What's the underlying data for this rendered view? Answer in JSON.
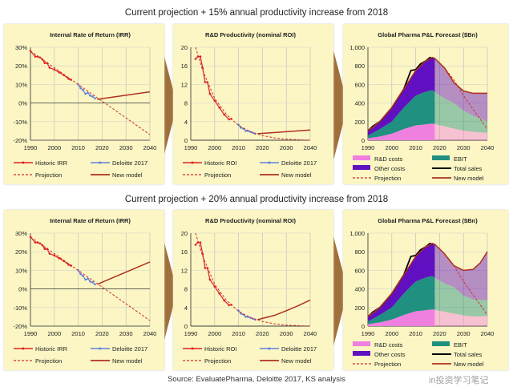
{
  "titles": [
    "Current projection + 15% annual productivity increase from 2018",
    "Current projection + 20% annual productivity increase from 2018"
  ],
  "source": "Source: EvaluatePharma, Deloitte 2017, KS analysis",
  "watermark": "in投资学习笔记",
  "colors": {
    "panel_bg": "#fbf6c4",
    "arrow": "#a0703a",
    "historic": "#e02020",
    "deloitte": "#6080e0",
    "projection": "#d03030",
    "new_model": "#b03020",
    "rd": "#f080e0",
    "ebit": "#209080",
    "other": "#6010c0",
    "total": "#000000"
  },
  "chart_data": [
    {
      "type": "line",
      "row": 0,
      "title": "Internal Rate of Return (IRR)",
      "xlim": [
        1990,
        2040
      ],
      "ylim": [
        -20,
        30
      ],
      "xticks": [
        1990,
        2000,
        2010,
        2020,
        2030,
        2040
      ],
      "yticks": [
        -20,
        -10,
        0,
        10,
        20,
        30
      ],
      "ytick_labels": [
        "-20%",
        "-10%",
        "0%",
        "10%",
        "20%",
        "30%"
      ],
      "grid": true,
      "series": [
        {
          "name": "Historic IRR",
          "style": "historic",
          "x": [
            1990,
            1992,
            1993,
            1994,
            1995,
            1996,
            1997,
            1998,
            2000,
            2002,
            2004,
            2006,
            2007
          ],
          "y": [
            28,
            25,
            25,
            24.5,
            23.5,
            21.5,
            21.5,
            19,
            18,
            16.5,
            15,
            13,
            12.5
          ]
        },
        {
          "name": "Deloitte 2017",
          "style": "deloitte",
          "x": [
            2010,
            2011,
            2012,
            2013,
            2014,
            2015,
            2016,
            2017
          ],
          "y": [
            10,
            8,
            7,
            5,
            5.5,
            4,
            3.5,
            2.5
          ]
        },
        {
          "name": "Projection",
          "style": "projection",
          "x": [
            1990,
            2040
          ],
          "y": [
            28,
            -17
          ]
        },
        {
          "name": "New model",
          "style": "new_model",
          "x": [
            2018,
            2040
          ],
          "y": [
            2,
            6
          ]
        }
      ]
    },
    {
      "type": "line",
      "row": 0,
      "title": "R&D Productivity (nominal ROI)",
      "xlim": [
        1990,
        2040
      ],
      "ylim": [
        0,
        20
      ],
      "xticks": [
        1990,
        2000,
        2010,
        2020,
        2030,
        2040
      ],
      "yticks": [
        0,
        4,
        8,
        12,
        16,
        20
      ],
      "ytick_labels": [
        "0",
        "4",
        "8",
        "12",
        "16",
        "20"
      ],
      "grid": true,
      "series": [
        {
          "name": "Historic ROI",
          "style": "historic",
          "x": [
            1992,
            1993,
            1994,
            1995,
            1996,
            1997,
            1998,
            2000,
            2002,
            2004,
            2006,
            2007
          ],
          "y": [
            17.5,
            18,
            18,
            15.5,
            12.5,
            12.5,
            10,
            8.5,
            7,
            5.5,
            4.5,
            4.6
          ]
        },
        {
          "name": "Deloitte 2017",
          "style": "deloitte",
          "x": [
            2010,
            2011,
            2012,
            2013,
            2014,
            2015,
            2016,
            2017
          ],
          "y": [
            3.3,
            2.7,
            2.5,
            2,
            2,
            1.8,
            1.6,
            1.4
          ]
        },
        {
          "name": "Projection",
          "style": "projection",
          "x": [
            1992,
            1995,
            2000,
            2005,
            2010,
            2015,
            2020,
            2025,
            2030,
            2040
          ],
          "y": [
            20,
            15,
            9,
            5.5,
            3.2,
            1.8,
            1,
            0.5,
            0.2,
            0
          ]
        },
        {
          "name": "New model",
          "style": "new_model",
          "x": [
            2018,
            2040
          ],
          "y": [
            1.4,
            2.2
          ]
        }
      ]
    },
    {
      "type": "area",
      "row": 0,
      "title": "Global Pharma P&L Forecast ($Bn)",
      "xlim": [
        1990,
        2040
      ],
      "ylim": [
        0,
        1000
      ],
      "xticks": [
        1990,
        2000,
        2010,
        2020,
        2030,
        2040
      ],
      "yticks": [
        0,
        200,
        400,
        600,
        800,
        1000
      ],
      "ytick_labels": [
        "0",
        "200",
        "400",
        "600",
        "800",
        "1,000"
      ],
      "grid": true,
      "x": [
        1990,
        1995,
        2000,
        2005,
        2010,
        2014,
        2017,
        2018,
        2022,
        2026,
        2030,
        2034,
        2040
      ],
      "stack": [
        {
          "name": "R&D costs",
          "style": "rd",
          "y": [
            20,
            40,
            70,
            120,
            160,
            170,
            180,
            175,
            150,
            125,
            105,
            90,
            80
          ]
        },
        {
          "name": "EBIT",
          "style": "ebit",
          "y": [
            30,
            80,
            130,
            230,
            320,
            350,
            360,
            345,
            300,
            275,
            215,
            175,
            120
          ]
        },
        {
          "name": "Other costs",
          "style": "other",
          "y": [
            50,
            80,
            150,
            200,
            270,
            330,
            350,
            360,
            330,
            220,
            210,
            240,
            305
          ]
        }
      ],
      "series": [
        {
          "name": "Total sales",
          "style": "total",
          "x": [
            1990,
            1992,
            1995,
            2000,
            2005,
            2008,
            2010,
            2012,
            2014,
            2016,
            2017
          ],
          "y": [
            100,
            150,
            200,
            350,
            550,
            750,
            760,
            820,
            850,
            890,
            880
          ]
        },
        {
          "name": "Projection",
          "style": "projection",
          "x": [
            2018,
            2022,
            2026,
            2030,
            2035,
            2040
          ],
          "y": [
            880,
            780,
            650,
            480,
            300,
            120
          ]
        },
        {
          "name": "New model",
          "style": "new_model",
          "x": [
            1990,
            1995,
            2000,
            2005,
            2010,
            2014,
            2017,
            2018,
            2022,
            2026,
            2030,
            2034,
            2040
          ],
          "y": [
            100,
            200,
            350,
            550,
            750,
            850,
            890,
            880,
            780,
            620,
            530,
            505,
            505
          ]
        }
      ]
    },
    {
      "type": "line",
      "row": 1,
      "title": "Internal Rate of Return (IRR)",
      "xlim": [
        1990,
        2040
      ],
      "ylim": [
        -20,
        30
      ],
      "xticks": [
        1990,
        2000,
        2010,
        2020,
        2030,
        2040
      ],
      "yticks": [
        -20,
        -10,
        0,
        10,
        20,
        30
      ],
      "ytick_labels": [
        "-20%",
        "-10%",
        "0%",
        "10%",
        "20%",
        "30%"
      ],
      "grid": true,
      "series": [
        {
          "name": "Historic IRR",
          "style": "historic",
          "x": [
            1990,
            1992,
            1993,
            1994,
            1995,
            1996,
            1997,
            1998,
            2000,
            2002,
            2004,
            2006,
            2007
          ],
          "y": [
            28,
            25,
            25,
            24.5,
            23.5,
            21.5,
            21.5,
            19,
            18,
            16.5,
            15,
            13,
            12.5
          ]
        },
        {
          "name": "Deloitte 2017",
          "style": "deloitte",
          "x": [
            2010,
            2011,
            2012,
            2013,
            2014,
            2015,
            2016,
            2017
          ],
          "y": [
            10,
            8,
            7,
            5,
            5.5,
            4,
            3.5,
            2.5
          ]
        },
        {
          "name": "Projection",
          "style": "projection",
          "x": [
            1990,
            2040
          ],
          "y": [
            28,
            -17
          ]
        },
        {
          "name": "New model",
          "style": "new_model",
          "x": [
            2018,
            2040
          ],
          "y": [
            2.5,
            14.5
          ]
        }
      ]
    },
    {
      "type": "line",
      "row": 1,
      "title": "R&D Productivity (nominal ROI)",
      "xlim": [
        1990,
        2040
      ],
      "ylim": [
        0,
        20
      ],
      "xticks": [
        1990,
        2000,
        2010,
        2020,
        2030,
        2040
      ],
      "yticks": [
        0,
        4,
        8,
        12,
        16,
        20
      ],
      "ytick_labels": [
        "0",
        "4",
        "8",
        "12",
        "16",
        "20"
      ],
      "grid": true,
      "series": [
        {
          "name": "Historic ROI",
          "style": "historic",
          "x": [
            1992,
            1993,
            1994,
            1995,
            1996,
            1997,
            1998,
            2000,
            2002,
            2004,
            2006,
            2007
          ],
          "y": [
            17.5,
            18,
            18,
            15.5,
            12.5,
            12.5,
            10,
            8.5,
            7,
            5.5,
            4.5,
            4.6
          ]
        },
        {
          "name": "Deloitte 2017",
          "style": "deloitte",
          "x": [
            2010,
            2011,
            2012,
            2013,
            2014,
            2015,
            2016,
            2017
          ],
          "y": [
            3.3,
            2.7,
            2.5,
            2,
            2,
            1.8,
            1.6,
            1.4
          ]
        },
        {
          "name": "Projection",
          "style": "projection",
          "x": [
            1992,
            1995,
            2000,
            2005,
            2010,
            2015,
            2020,
            2025,
            2030,
            2040
          ],
          "y": [
            20,
            15,
            9,
            5.5,
            3.2,
            1.8,
            1,
            0.5,
            0.2,
            0
          ]
        },
        {
          "name": "New model",
          "style": "new_model",
          "x": [
            2018,
            2025,
            2030,
            2035,
            2040
          ],
          "y": [
            1.4,
            2.3,
            3.3,
            4.4,
            5.6
          ]
        }
      ]
    },
    {
      "type": "area",
      "row": 1,
      "title": "Global Pharma P&L Forecast ($Bn)",
      "xlim": [
        1990,
        2040
      ],
      "ylim": [
        0,
        1000
      ],
      "xticks": [
        1990,
        2000,
        2010,
        2020,
        2030,
        2040
      ],
      "yticks": [
        0,
        200,
        400,
        600,
        800,
        1000
      ],
      "ytick_labels": [
        "0",
        "200",
        "400",
        "600",
        "800",
        "1,000"
      ],
      "grid": true,
      "x": [
        1990,
        1995,
        2000,
        2005,
        2010,
        2014,
        2017,
        2018,
        2022,
        2026,
        2030,
        2034,
        2037,
        2040
      ],
      "stack": [
        {
          "name": "R&D costs",
          "style": "rd",
          "y": [
            20,
            40,
            70,
            120,
            160,
            170,
            180,
            175,
            155,
            135,
            115,
            105,
            105,
            110
          ]
        },
        {
          "name": "EBIT",
          "style": "ebit",
          "y": [
            30,
            80,
            130,
            230,
            320,
            350,
            360,
            345,
            305,
            285,
            215,
            185,
            175,
            170
          ]
        },
        {
          "name": "Other costs",
          "style": "other",
          "y": [
            50,
            80,
            150,
            200,
            270,
            330,
            350,
            360,
            320,
            230,
            270,
            320,
            400,
            520
          ]
        }
      ],
      "series": [
        {
          "name": "Total sales",
          "style": "total",
          "x": [
            1990,
            1992,
            1995,
            2000,
            2005,
            2008,
            2010,
            2012,
            2014,
            2016,
            2017
          ],
          "y": [
            100,
            150,
            200,
            350,
            550,
            750,
            760,
            820,
            850,
            890,
            880
          ]
        },
        {
          "name": "Projection",
          "style": "projection",
          "x": [
            2018,
            2022,
            2026,
            2030,
            2035,
            2040
          ],
          "y": [
            880,
            780,
            650,
            480,
            300,
            120
          ]
        },
        {
          "name": "New model",
          "style": "new_model",
          "x": [
            1990,
            1995,
            2000,
            2005,
            2010,
            2014,
            2017,
            2018,
            2022,
            2026,
            2030,
            2034,
            2037,
            2040
          ],
          "y": [
            100,
            200,
            350,
            550,
            750,
            850,
            890,
            880,
            780,
            650,
            600,
            610,
            680,
            800
          ]
        }
      ]
    }
  ]
}
